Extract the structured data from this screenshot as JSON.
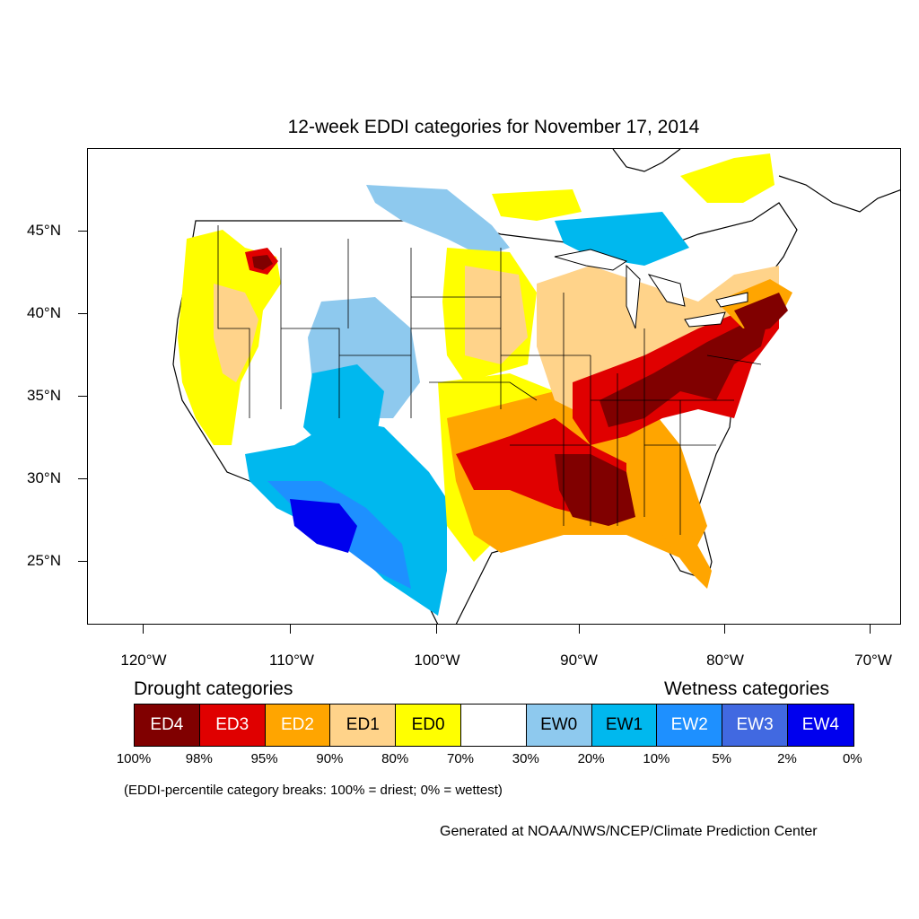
{
  "title": "12-week EDDI categories for November 17, 2014",
  "lat_labels": [
    "45°N",
    "40°N",
    "35°N",
    "30°N",
    "25°N"
  ],
  "lon_labels": [
    "120°W",
    "110°W",
    "100°W",
    "90°W",
    "80°W",
    "70°W"
  ],
  "legend": {
    "drought_heading": "Drought categories",
    "wetness_heading": "Wetness categories",
    "categories": [
      {
        "label": "ED4",
        "color": "#800000",
        "text_color": "#ffffff"
      },
      {
        "label": "ED3",
        "color": "#e00000",
        "text_color": "#ffffff"
      },
      {
        "label": "ED2",
        "color": "#ffa500",
        "text_color": "#ffffff"
      },
      {
        "label": "ED1",
        "color": "#ffd38a",
        "text_color": "#000000"
      },
      {
        "label": "ED0",
        "color": "#ffff00",
        "text_color": "#000000"
      },
      {
        "label": "",
        "color": "#ffffff",
        "text_color": "#000000"
      },
      {
        "label": "EW0",
        "color": "#8ec9ee",
        "text_color": "#000000"
      },
      {
        "label": "EW1",
        "color": "#00b8ee",
        "text_color": "#000000"
      },
      {
        "label": "EW2",
        "color": "#1e90ff",
        "text_color": "#ffffff"
      },
      {
        "label": "EW3",
        "color": "#4169e1",
        "text_color": "#ffffff"
      },
      {
        "label": "EW4",
        "color": "#0000ee",
        "text_color": "#ffffff"
      }
    ],
    "breaks": [
      "100%",
      "98%",
      "95%",
      "90%",
      "80%",
      "70%",
      "30%",
      "20%",
      "10%",
      "5%",
      "2%",
      "0%"
    ],
    "note": "(EDDI-percentile category breaks: 100% = driest; 0% = wettest)"
  },
  "credit": "Generated at NOAA/NWS/NCEP/Climate Prediction Center"
}
